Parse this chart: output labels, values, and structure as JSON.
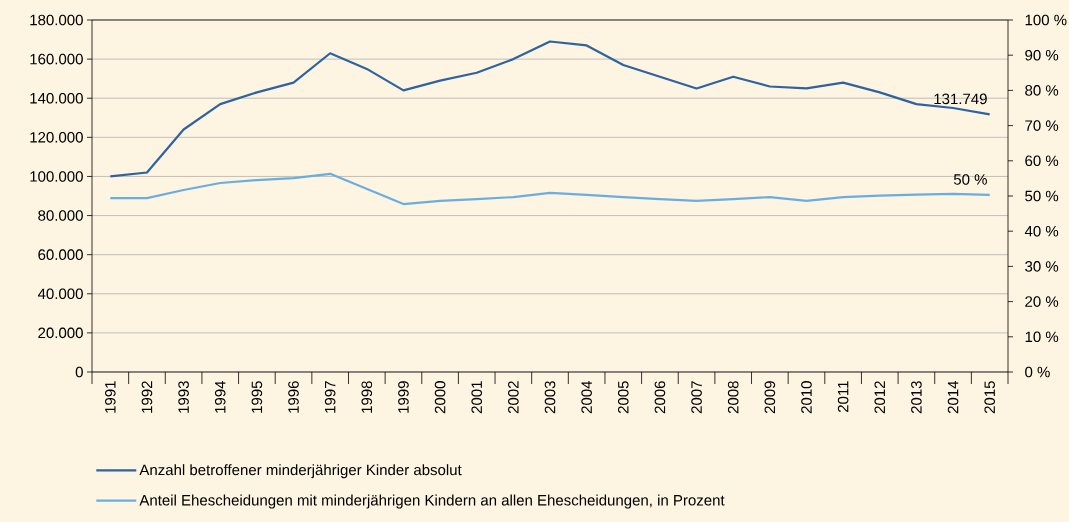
{
  "chart_data": {
    "type": "line",
    "categories": [
      "1991",
      "1992",
      "1993",
      "1994",
      "1995",
      "1996",
      "1997",
      "1998",
      "1999",
      "2000",
      "2001",
      "2002",
      "2003",
      "2004",
      "2005",
      "2006",
      "2007",
      "2008",
      "2009",
      "2010",
      "2011",
      "2012",
      "2013",
      "2014",
      "2015"
    ],
    "series": [
      {
        "name": "Anzahl betroffener minderjähriger Kinder absolut",
        "color": "#2e62a0",
        "values": [
          100000,
          102000,
          124000,
          137000,
          143000,
          148000,
          163000,
          155000,
          144000,
          149000,
          153000,
          160000,
          169000,
          167000,
          157000,
          151000,
          145000,
          151000,
          146000,
          145000,
          148000,
          143000,
          137000,
          135000,
          131749
        ]
      },
      {
        "name": "Anteil Ehescheidungen mit minderjährigen Kindern an allen Ehescheidungen, in Prozent",
        "color": "#6aaee0",
        "axis": "y2",
        "values": [
          49.4,
          49.4,
          51.7,
          53.7,
          54.5,
          55.1,
          56.3,
          52,
          47.7,
          48.6,
          49.1,
          49.7,
          50.9,
          50.3,
          49.7,
          49.1,
          48.6,
          49.1,
          49.7,
          48.6,
          49.7,
          50.1,
          50.4,
          50.6,
          50.3
        ]
      }
    ],
    "ylim": [
      0,
      180000
    ],
    "yticks": [
      {
        "value": 0,
        "label": "0"
      },
      {
        "value": 20000,
        "label": "20.000"
      },
      {
        "value": 40000,
        "label": "40.000"
      },
      {
        "value": 60000,
        "label": "60.000"
      },
      {
        "value": 80000,
        "label": "80.000"
      },
      {
        "value": 100000,
        "label": "100.000"
      },
      {
        "value": 120000,
        "label": "120.000"
      },
      {
        "value": 140000,
        "label": "140.000"
      },
      {
        "value": 160000,
        "label": "160.000"
      },
      {
        "value": 180000,
        "label": "180.000"
      }
    ],
    "y2lim": [
      0,
      100
    ],
    "y2ticks": [
      {
        "value": 0,
        "label": "0 %"
      },
      {
        "value": 10,
        "label": "10 %"
      },
      {
        "value": 20,
        "label": "20 %"
      },
      {
        "value": 30,
        "label": "30 %"
      },
      {
        "value": 40,
        "label": "40 %"
      },
      {
        "value": 50,
        "label": "50 %"
      },
      {
        "value": 60,
        "label": "60 %"
      },
      {
        "value": 70,
        "label": "70 %"
      },
      {
        "value": 80,
        "label": "80 %"
      },
      {
        "value": 90,
        "label": "90 %"
      },
      {
        "value": 100,
        "label": "100 %"
      }
    ],
    "annotations": [
      {
        "text": "131.749",
        "x": "2015",
        "y": 131749
      },
      "50 %"
    ],
    "grid": "y",
    "legend": "bottom",
    "marker": "none",
    "line_style": "solid"
  }
}
